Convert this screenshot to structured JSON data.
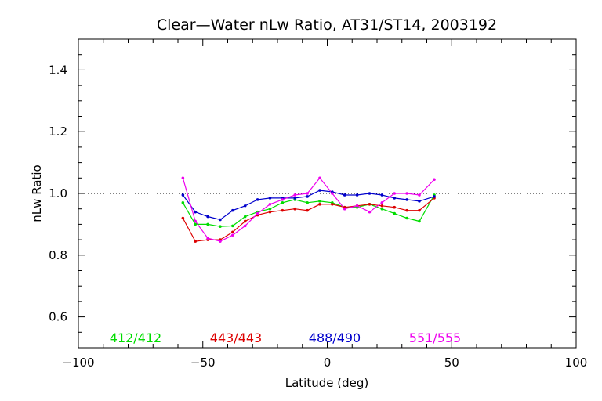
{
  "chart_data": {
    "type": "line",
    "title": "Clear—Water nLw Ratio, AT31/ST14, 2003192",
    "xlabel": "Latitude (deg)",
    "ylabel": "nLw Ratio",
    "xlim": [
      -100,
      100
    ],
    "ylim": [
      0.5,
      1.5
    ],
    "x_ticks": [
      -100,
      -50,
      0,
      50,
      100
    ],
    "x_tick_labels": [
      "−100",
      "−50",
      "0",
      "50",
      "100"
    ],
    "y_ticks": [
      0.6,
      0.8,
      1.0,
      1.2,
      1.4
    ],
    "y_tick_labels": [
      "0.6",
      "0.8",
      "1.0",
      "1.2",
      "1.4"
    ],
    "reference_line": 1.0,
    "grid": false,
    "legend_placement": "bottom inside plot",
    "series": [
      {
        "name": "412/412",
        "color": "#00dd00",
        "x": [
          -58,
          -53,
          -48,
          -43,
          -38,
          -33,
          -28,
          -23,
          -18,
          -13,
          -8,
          -3,
          2,
          7,
          12,
          17,
          22,
          27,
          32,
          37,
          43
        ],
        "y": [
          0.97,
          0.9,
          0.9,
          0.893,
          0.895,
          0.925,
          0.94,
          0.95,
          0.97,
          0.98,
          0.97,
          0.975,
          0.97,
          0.955,
          0.955,
          0.965,
          0.95,
          0.935,
          0.92,
          0.91,
          0.995
        ]
      },
      {
        "name": "443/443",
        "color": "#dd0000",
        "x": [
          -58,
          -53,
          -48,
          -43,
          -38,
          -33,
          -28,
          -23,
          -18,
          -13,
          -8,
          -3,
          2,
          7,
          12,
          17,
          22,
          27,
          32,
          37,
          43
        ],
        "y": [
          0.92,
          0.845,
          0.85,
          0.85,
          0.875,
          0.91,
          0.93,
          0.94,
          0.945,
          0.95,
          0.945,
          0.965,
          0.965,
          0.955,
          0.96,
          0.965,
          0.96,
          0.955,
          0.945,
          0.945,
          0.985
        ]
      },
      {
        "name": "488/490",
        "color": "#0000cc",
        "x": [
          -58,
          -53,
          -48,
          -43,
          -38,
          -33,
          -28,
          -23,
          -18,
          -13,
          -8,
          -3,
          2,
          7,
          12,
          17,
          22,
          27,
          32,
          37,
          43
        ],
        "y": [
          0.995,
          0.94,
          0.925,
          0.915,
          0.945,
          0.96,
          0.98,
          0.985,
          0.985,
          0.985,
          0.99,
          1.01,
          1.005,
          0.995,
          0.995,
          1.0,
          0.995,
          0.985,
          0.98,
          0.975,
          0.99
        ]
      },
      {
        "name": "551/555",
        "color": "#ee00ee",
        "x": [
          -58,
          -53,
          -48,
          -43,
          -38,
          -33,
          -28,
          -23,
          -18,
          -13,
          -8,
          -3,
          2,
          7,
          12,
          17,
          22,
          27,
          32,
          37,
          43
        ],
        "y": [
          1.05,
          0.91,
          0.855,
          0.845,
          0.865,
          0.895,
          0.935,
          0.965,
          0.98,
          0.995,
          1.0,
          1.05,
          1.0,
          0.95,
          0.96,
          0.94,
          0.97,
          1.0,
          1.0,
          0.995,
          1.045
        ]
      }
    ]
  }
}
